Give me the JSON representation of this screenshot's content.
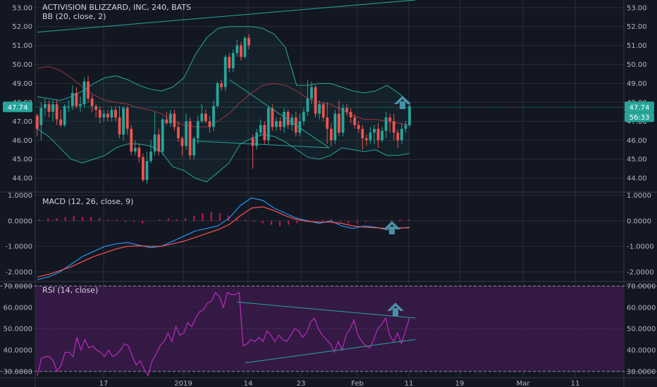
{
  "title": "ACTIVISION BLIZZARD, INC, 240, BATS",
  "colors": {
    "background": "#131722",
    "grid": "#2a2e39",
    "up": "#26a69a",
    "down": "#ef5350",
    "bb": "#26a69a",
    "bb_basis": "#a0343f",
    "macd": "#2196f3",
    "signal": "#ff5252",
    "hist": "#c2185b",
    "rsi": "#b22ab5",
    "rsi_band": "#3b1a4a",
    "trendline": "#26a69a",
    "arrow": "#4a90a4",
    "price_label": "#26a69a"
  },
  "chart_data": [
    {
      "type": "candlestick",
      "indicator_label": "BB (20, close, 2)",
      "ylim": [
        43.3,
        53.4
      ],
      "y_ticks": [
        "53.00",
        "52.00",
        "51.00",
        "50.00",
        "49.00",
        "48.00",
        "47.00",
        "46.00",
        "45.00",
        "44.00"
      ],
      "current_price": "47.74",
      "countdown": "56:33",
      "x_ticks": [
        "17",
        "2019",
        "14",
        "23",
        "Feb",
        "11",
        "19",
        "Mar",
        "11"
      ],
      "candles": [
        [
          47.3,
          46.6,
          47.4,
          46.2
        ],
        [
          46.8,
          47.7,
          48.0,
          46.0
        ],
        [
          47.7,
          47.9,
          48.2,
          47.3
        ],
        [
          47.9,
          47.5,
          48.1,
          47.2
        ],
        [
          47.5,
          47.9,
          48.1,
          47.0
        ],
        [
          47.9,
          47.1,
          48.1,
          46.8
        ],
        [
          47.1,
          46.8,
          47.6,
          46.7
        ],
        [
          46.8,
          47.8,
          47.9,
          46.7
        ],
        [
          47.8,
          47.8,
          48.1,
          47.5
        ],
        [
          47.8,
          48.5,
          48.9,
          47.6
        ],
        [
          48.5,
          47.8,
          48.8,
          47.7
        ],
        [
          47.8,
          47.9,
          48.3,
          47.5
        ],
        [
          47.9,
          49.1,
          49.3,
          47.7
        ],
        [
          49.1,
          48.2,
          49.4,
          48.0
        ],
        [
          48.2,
          47.8,
          48.4,
          47.5
        ],
        [
          47.8,
          47.6,
          47.9,
          47.2
        ],
        [
          47.6,
          47.2,
          47.8,
          46.9
        ],
        [
          47.2,
          47.4,
          47.6,
          47.0
        ],
        [
          47.4,
          47.2,
          47.6,
          47.0
        ],
        [
          47.2,
          47.6,
          47.8,
          47.0
        ],
        [
          47.6,
          47.2,
          47.8,
          47.0
        ],
        [
          47.2,
          46.3,
          47.8,
          46.1
        ],
        [
          46.3,
          47.7,
          47.8,
          46.0
        ],
        [
          47.7,
          46.6,
          47.8,
          46.3
        ],
        [
          46.6,
          45.4,
          46.8,
          45.2
        ],
        [
          45.4,
          45.6,
          46.0,
          45.2
        ],
        [
          45.6,
          45.1,
          45.8,
          44.8
        ],
        [
          45.1,
          43.9,
          45.3,
          43.8
        ],
        [
          43.9,
          44.9,
          45.4,
          43.7
        ],
        [
          44.9,
          45.4,
          46.0,
          44.8
        ],
        [
          45.4,
          46.3,
          47.5,
          45.2
        ],
        [
          46.3,
          45.4,
          46.6,
          45.2
        ],
        [
          45.4,
          47.1,
          47.2,
          45.2
        ],
        [
          47.1,
          46.9,
          47.5,
          46.8
        ],
        [
          46.9,
          47.4,
          47.6,
          46.7
        ],
        [
          47.4,
          46.7,
          47.6,
          46.5
        ],
        [
          46.7,
          46.1,
          47.0,
          45.9
        ],
        [
          46.1,
          45.7,
          46.2,
          45.2
        ],
        [
          45.7,
          47.0,
          47.4,
          45.5
        ],
        [
          47.0,
          45.2,
          47.2,
          45.0
        ],
        [
          45.2,
          46.1,
          46.2,
          45.0
        ],
        [
          46.1,
          47.0,
          47.3,
          45.8
        ],
        [
          47.0,
          47.4,
          47.9,
          46.9
        ],
        [
          47.4,
          47.0,
          47.6,
          46.9
        ],
        [
          47.0,
          46.7,
          47.3,
          46.4
        ],
        [
          46.7,
          47.8,
          48.1,
          46.5
        ],
        [
          47.8,
          49.0,
          49.1,
          47.7
        ],
        [
          49.0,
          48.8,
          49.2,
          48.6
        ],
        [
          48.8,
          50.4,
          50.5,
          48.6
        ],
        [
          50.4,
          49.8,
          50.6,
          49.6
        ],
        [
          49.8,
          50.6,
          50.8,
          49.6
        ],
        [
          50.6,
          51.0,
          51.3,
          50.4
        ],
        [
          51.0,
          50.4,
          51.2,
          50.2
        ],
        [
          50.4,
          51.4,
          51.5,
          50.3
        ],
        [
          51.4,
          51.0,
          51.6,
          50.8
        ],
        [
          46.1,
          45.7,
          46.3,
          44.5
        ],
        [
          45.7,
          46.4,
          46.6,
          45.5
        ],
        [
          46.4,
          46.8,
          47.1,
          46.2
        ],
        [
          46.8,
          46.0,
          47.0,
          45.8
        ],
        [
          46.0,
          47.7,
          47.8,
          45.8
        ],
        [
          47.7,
          46.7,
          47.9,
          46.5
        ],
        [
          46.7,
          47.0,
          47.2,
          46.5
        ],
        [
          47.0,
          46.7,
          47.2,
          46.5
        ],
        [
          46.7,
          47.5,
          47.7,
          46.4
        ],
        [
          47.5,
          46.8,
          47.6,
          46.6
        ],
        [
          46.8,
          47.2,
          47.4,
          46.5
        ],
        [
          47.2,
          46.4,
          47.5,
          46.2
        ],
        [
          46.4,
          47.0,
          47.4,
          46.2
        ],
        [
          47.0,
          47.5,
          47.7,
          46.8
        ],
        [
          47.5,
          48.2,
          49.2,
          47.3
        ],
        [
          48.2,
          48.8,
          49.1,
          47.9
        ],
        [
          48.8,
          47.4,
          48.9,
          47.2
        ],
        [
          47.4,
          47.9,
          48.1,
          47.1
        ],
        [
          47.9,
          47.2,
          48.0,
          47.0
        ],
        [
          47.2,
          46.6,
          48.0,
          45.8
        ],
        [
          46.6,
          46.0,
          46.9,
          45.7
        ],
        [
          46.0,
          47.4,
          47.6,
          45.8
        ],
        [
          47.4,
          46.4,
          48.1,
          46.2
        ],
        [
          46.4,
          47.7,
          47.9,
          46.2
        ],
        [
          47.7,
          47.5,
          47.9,
          47.3
        ],
        [
          47.5,
          47.2,
          47.7,
          46.9
        ],
        [
          47.2,
          46.8,
          47.4,
          46.6
        ],
        [
          46.8,
          46.6,
          47.0,
          46.4
        ],
        [
          46.6,
          46.1,
          46.8,
          45.5
        ],
        [
          46.1,
          46.0,
          46.3,
          45.7
        ],
        [
          46.0,
          46.4,
          46.7,
          45.8
        ],
        [
          46.4,
          46.6,
          46.8,
          45.8
        ],
        [
          46.6,
          46.0,
          46.9,
          45.6
        ],
        [
          46.0,
          46.5,
          46.7,
          45.9
        ],
        [
          46.5,
          47.2,
          47.5,
          46.1
        ],
        [
          47.2,
          47.0,
          47.4,
          46.4
        ],
        [
          47.0,
          46.4,
          47.4,
          46.0
        ],
        [
          46.4,
          46.0,
          46.6,
          45.6
        ],
        [
          46.0,
          46.6,
          46.9,
          45.8
        ],
        [
          46.6,
          46.8,
          47.0,
          46.4
        ],
        [
          46.8,
          47.8,
          47.9,
          46.7
        ]
      ],
      "bb_upper": [
        48.3,
        48.2,
        48.1,
        48.3,
        48.6,
        49.0,
        49.3,
        49.4,
        49.2,
        48.9,
        48.7,
        48.6,
        48.8,
        49.3,
        50.5,
        51.4,
        51.9,
        52.0,
        52.0,
        52.0,
        51.9,
        51.6,
        50.9,
        48.9,
        48.9,
        49.0,
        49.0,
        48.8,
        48.6,
        48.5,
        48.6,
        48.9,
        48.5,
        48.0
      ],
      "bb_basis": [
        49.8,
        49.9,
        49.7,
        49.3,
        48.8,
        48.4,
        48.1,
        48.0,
        47.9,
        47.7,
        47.6,
        47.4,
        47.0,
        46.8,
        46.7,
        46.7,
        47.0,
        47.4,
        48.0,
        48.5,
        48.9,
        49.0,
        48.9,
        48.6,
        48.2,
        48.0,
        47.9,
        47.6,
        47.3,
        47.1,
        47.1,
        47.0,
        46.9,
        46.8
      ],
      "bb_lower": [
        46.6,
        46.2,
        45.6,
        45.0,
        44.8,
        45.0,
        45.2,
        45.6,
        45.8,
        45.8,
        45.7,
        45.4,
        44.6,
        44.4,
        44.0,
        43.8,
        44.3,
        44.8,
        45.8,
        46.1,
        46.3,
        46.2,
        45.9,
        45.5,
        45.1,
        45.0,
        45.2,
        45.6,
        45.5,
        45.4,
        45.5,
        45.2,
        45.2,
        45.3
      ],
      "trendlines": [
        [
          [
            0,
            51.7
          ],
          [
            96.5,
            53.4
          ]
        ],
        [
          [
            49,
            49.2
          ],
          [
            74.5,
            45.6
          ]
        ],
        [
          [
            40.6,
            45.95
          ],
          [
            74.5,
            45.6
          ]
        ]
      ]
    },
    {
      "type": "macd",
      "indicator_label": "MACD (12, 26, close, 9)",
      "ylim": [
        -2.35,
        1.1
      ],
      "y_ticks": [
        "1.0000",
        "0.0000",
        "-1.0000",
        "-2.0000"
      ],
      "macd": [
        -2.3,
        -2.2,
        -2.0,
        -1.7,
        -1.4,
        -1.2,
        -1.0,
        -0.9,
        -0.85,
        -0.95,
        -1.05,
        -1.0,
        -0.8,
        -0.6,
        -0.4,
        -0.3,
        -0.2,
        0.1,
        0.6,
        0.9,
        0.8,
        0.5,
        0.3,
        0.1,
        0.0,
        -0.1,
        0.0,
        -0.2,
        -0.3,
        -0.2,
        -0.25,
        -0.35,
        -0.3,
        -0.25
      ],
      "signal": [
        -2.2,
        -2.1,
        -1.95,
        -1.8,
        -1.6,
        -1.4,
        -1.25,
        -1.1,
        -1.0,
        -0.98,
        -1.0,
        -1.0,
        -0.9,
        -0.8,
        -0.65,
        -0.5,
        -0.35,
        -0.15,
        0.2,
        0.5,
        0.55,
        0.4,
        0.2,
        0.05,
        -0.02,
        -0.05,
        -0.05,
        -0.1,
        -0.2,
        -0.25,
        -0.27,
        -0.3,
        -0.28,
        -0.27
      ],
      "histogram": [
        0.05,
        0.1,
        0.1,
        0.15,
        0.2,
        0.15,
        0.15,
        0.1,
        0.05,
        0.05,
        -0.05,
        -0.05,
        -0.1,
        0.0,
        0.05,
        0.1,
        0.05,
        0.1,
        0.2,
        0.3,
        0.35,
        0.3,
        0.2,
        0.1,
        0.05,
        -0.05,
        -0.1,
        -0.15,
        -0.2,
        -0.15,
        -0.1,
        -0.05,
        -0.02,
        0.05,
        0.05,
        -0.05,
        -0.1,
        -0.1,
        -0.05,
        0.0,
        0.02,
        0.03,
        0.05,
        0.05
      ]
    },
    {
      "type": "rsi",
      "indicator_label": "RSI (14, close)",
      "ylim": [
        27,
        71.5
      ],
      "y_ticks": [
        "70.0000",
        "60.0000",
        "50.0000",
        "40.0000",
        "30.0000"
      ],
      "band": [
        30,
        70
      ],
      "rsi": [
        28,
        36,
        37,
        37,
        35,
        30,
        33,
        39,
        39,
        37,
        46,
        40,
        45,
        41,
        42,
        40,
        39,
        37,
        40,
        37,
        38,
        40,
        43,
        42,
        37,
        33,
        35,
        31,
        28,
        35,
        38,
        42,
        44,
        48,
        44,
        51,
        47,
        48,
        53,
        51,
        55,
        58,
        59,
        62,
        63,
        67,
        65,
        60,
        67,
        66,
        66,
        67,
        42,
        43,
        45,
        44,
        46,
        44,
        49,
        47,
        44,
        47,
        45,
        44,
        47,
        50,
        49,
        46,
        48,
        53,
        55,
        50,
        47,
        45,
        43,
        39,
        44,
        40,
        47,
        50,
        54,
        47,
        44,
        42,
        41,
        45,
        50,
        52,
        55,
        47,
        44,
        48,
        43,
        49,
        55
      ],
      "trendlines": [
        [
          [
            51,
            62.5
          ],
          [
            96.5,
            55
          ]
        ],
        [
          [
            53,
            34
          ],
          [
            96.5,
            45
          ]
        ]
      ]
    }
  ]
}
